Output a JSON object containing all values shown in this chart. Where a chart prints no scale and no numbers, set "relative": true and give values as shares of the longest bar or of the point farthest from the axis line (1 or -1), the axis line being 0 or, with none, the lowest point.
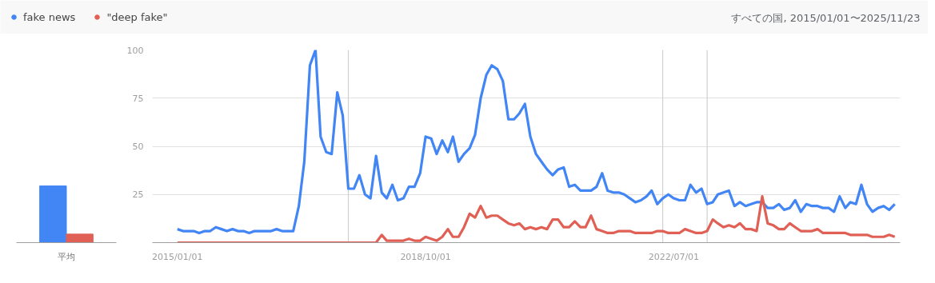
{
  "chart_data": [
    {
      "type": "bar",
      "relative": true,
      "categories": [
        "平均"
      ],
      "series": [
        {
          "color": "#4285f4",
          "values": [
            1
          ]
        },
        {
          "color": "#e06055",
          "values": [
            0.15
          ]
        }
      ]
    },
    {
      "type": "line",
      "annotations": [
        "すべての国, 2015/01/01〜2025/11/23"
      ],
      "x": [
        "2015-01",
        "2015-02",
        "2015-03",
        "2015-04",
        "2015-05",
        "2015-06",
        "2015-07",
        "2015-08",
        "2015-09",
        "2015-10",
        "2015-11",
        "2015-12",
        "2016-01",
        "2016-02",
        "2016-03",
        "2016-04",
        "2016-05",
        "2016-06",
        "2016-07",
        "2016-08",
        "2016-09",
        "2016-10",
        "2016-11",
        "2016-12",
        "2017-01",
        "2017-02",
        "2017-03",
        "2017-04",
        "2017-05",
        "2017-06",
        "2017-07",
        "2017-08",
        "2017-09",
        "2017-10",
        "2017-11",
        "2017-12",
        "2018-01",
        "2018-02",
        "2018-03",
        "2018-04",
        "2018-05",
        "2018-06",
        "2018-07",
        "2018-08",
        "2018-09",
        "2018-10",
        "2018-11",
        "2018-12",
        "2019-01",
        "2019-02",
        "2019-03",
        "2019-04",
        "2019-05",
        "2019-06",
        "2019-07",
        "2019-08",
        "2019-09",
        "2019-10",
        "2019-11",
        "2019-12",
        "2020-01",
        "2020-02",
        "2020-03",
        "2020-04",
        "2020-05",
        "2020-06",
        "2020-07",
        "2020-08",
        "2020-09",
        "2020-10",
        "2020-11",
        "2020-12",
        "2021-01",
        "2021-02",
        "2021-03",
        "2021-04",
        "2021-05",
        "2021-06",
        "2021-07",
        "2021-08",
        "2021-09",
        "2021-10",
        "2021-11",
        "2021-12",
        "2022-01",
        "2022-02",
        "2022-03",
        "2022-04",
        "2022-05",
        "2022-06",
        "2022-07",
        "2022-08",
        "2022-09",
        "2022-10",
        "2022-11",
        "2022-12",
        "2023-01",
        "2023-02",
        "2023-03",
        "2023-04",
        "2023-05",
        "2023-06",
        "2023-07",
        "2023-08",
        "2023-09",
        "2023-10",
        "2023-11",
        "2023-12",
        "2024-01",
        "2024-02",
        "2024-03",
        "2024-04",
        "2024-05",
        "2024-06",
        "2024-07",
        "2024-08",
        "2024-09",
        "2024-10",
        "2024-11",
        "2024-12",
        "2025-01",
        "2025-02",
        "2025-03",
        "2025-04",
        "2025-05",
        "2025-06",
        "2025-07",
        "2025-08",
        "2025-09",
        "2025-10",
        "2025-11"
      ],
      "series": [
        {
          "name": "fake news",
          "color": "#4285f4",
          "values": [
            7,
            6,
            6,
            6,
            5,
            6,
            6,
            8,
            7,
            6,
            7,
            6,
            6,
            5,
            6,
            6,
            6,
            6,
            7,
            6,
            6,
            6,
            19,
            42,
            92,
            100,
            55,
            47,
            46,
            78,
            66,
            28,
            28,
            35,
            25,
            23,
            45,
            26,
            23,
            30,
            22,
            23,
            29,
            29,
            36,
            55,
            54,
            46,
            53,
            47,
            55,
            42,
            46,
            49,
            56,
            75,
            87,
            92,
            90,
            84,
            64,
            64,
            67,
            72,
            55,
            46,
            42,
            38,
            35,
            38,
            39,
            29,
            30,
            27,
            27,
            27,
            29,
            36,
            27,
            26,
            26,
            25,
            23,
            21,
            22,
            24,
            27,
            20,
            23,
            25,
            23,
            22,
            22,
            30,
            26,
            28,
            20,
            21,
            25,
            26,
            27,
            19,
            21,
            19,
            20,
            21,
            21,
            18,
            18,
            20,
            17,
            18,
            22,
            16,
            20,
            19,
            19,
            18,
            18,
            16,
            24,
            18,
            21,
            20,
            30,
            20,
            16,
            18,
            19,
            17,
            20
          ]
        },
        {
          "name": "\"deep fake\"",
          "color": "#e06055",
          "values": [
            0,
            0,
            0,
            0,
            0,
            0,
            0,
            0,
            0,
            0,
            0,
            0,
            0,
            0,
            0,
            0,
            0,
            0,
            0,
            0,
            0,
            0,
            0,
            0,
            0,
            0,
            0,
            0,
            0,
            0,
            0,
            0,
            0,
            0,
            0,
            0,
            0,
            4,
            1,
            1,
            1,
            1,
            2,
            1,
            1,
            3,
            2,
            1,
            3,
            7,
            3,
            3,
            8,
            15,
            13,
            19,
            13,
            14,
            14,
            12,
            10,
            9,
            10,
            7,
            8,
            7,
            8,
            7,
            12,
            12,
            8,
            8,
            11,
            8,
            8,
            14,
            7,
            6,
            5,
            5,
            6,
            6,
            6,
            5,
            5,
            5,
            5,
            6,
            6,
            5,
            5,
            5,
            7,
            6,
            5,
            5,
            6,
            12,
            10,
            8,
            9,
            8,
            10,
            7,
            7,
            6,
            24,
            10,
            9,
            7,
            7,
            10,
            8,
            6,
            6,
            6,
            7,
            5,
            5,
            5,
            5,
            5,
            4,
            4,
            4,
            4,
            3,
            3,
            3,
            4,
            3
          ]
        }
      ],
      "xlim": [
        "2014-08-16",
        "2025-12-01"
      ],
      "xticks": [
        {
          "value": "2015-01",
          "label": "2015/01/01"
        },
        {
          "value": "2018-10",
          "label": "2018/10/01"
        },
        {
          "value": "2022-07",
          "label": "2022/07/01"
        }
      ],
      "ylim": [
        0,
        100
      ],
      "yticks": [
        25,
        50,
        75,
        100
      ],
      "grid": "y",
      "legend": "top left",
      "ref_lines": [
        {
          "axis": "x",
          "value": "2017-08",
          "color": "#d0d0d0"
        },
        {
          "axis": "x",
          "value": "2022-05",
          "color": "#d0d0d0"
        },
        {
          "axis": "x",
          "value": "2023-01",
          "color": "#d0d0d0"
        }
      ]
    }
  ]
}
